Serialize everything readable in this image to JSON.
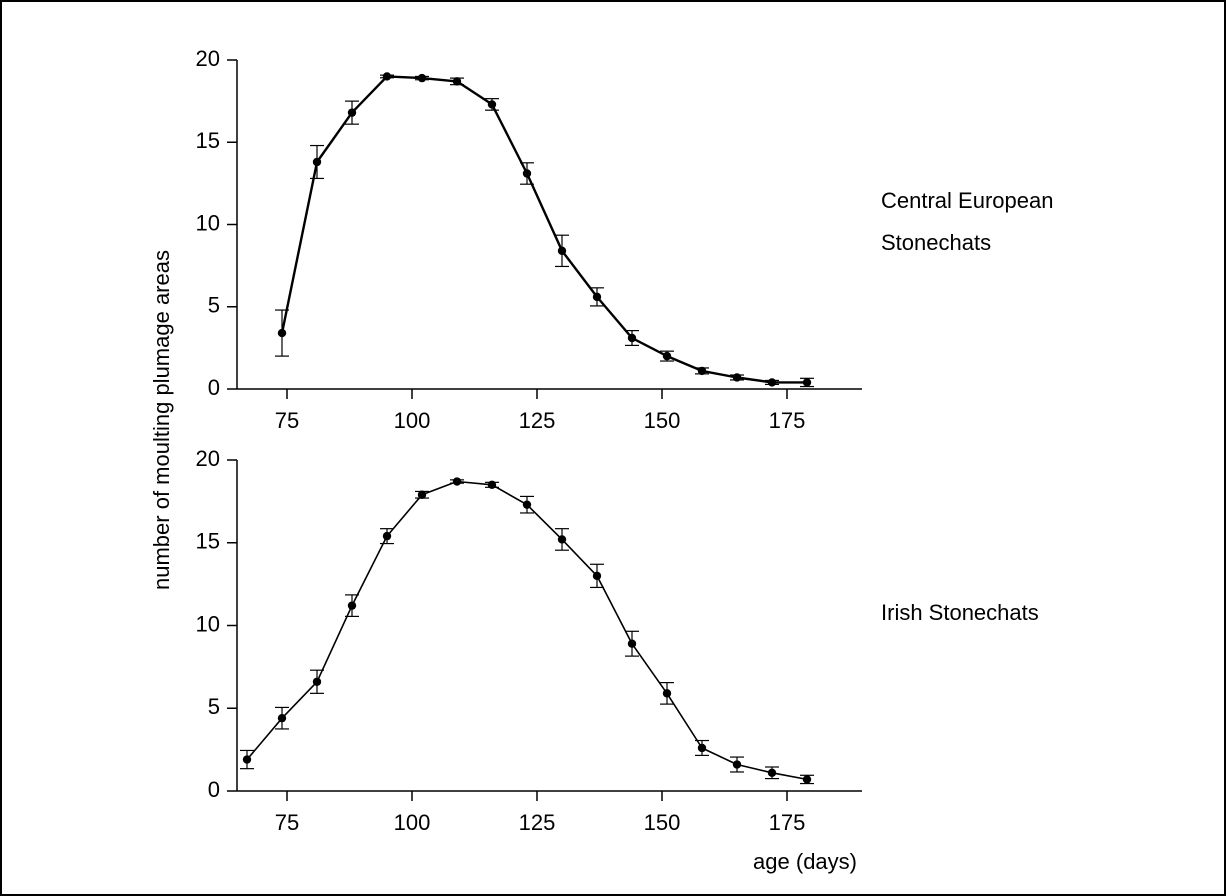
{
  "chart_data": [
    {
      "type": "line",
      "panel_label": [
        "Central European",
        "Stonechats"
      ],
      "ylabel": "number of moulting plumage areas",
      "xlabel": "",
      "xlim": [
        65,
        190
      ],
      "ylim": [
        0,
        20
      ],
      "xticks": [
        75,
        100,
        125,
        150,
        175
      ],
      "yticks": [
        0,
        5,
        10,
        15,
        20
      ],
      "grid": false,
      "series": [
        {
          "x": [
            74,
            81,
            88,
            95,
            102,
            109,
            116,
            123,
            130,
            137,
            144,
            151,
            158,
            165,
            172,
            179
          ],
          "y": [
            3.4,
            13.8,
            16.8,
            19.0,
            18.9,
            18.7,
            17.3,
            13.1,
            8.4,
            5.6,
            3.1,
            2.0,
            1.1,
            0.7,
            0.4,
            0.4
          ],
          "err": [
            1.4,
            1.0,
            0.7,
            0.08,
            0.1,
            0.2,
            0.35,
            0.65,
            0.95,
            0.55,
            0.45,
            0.3,
            0.18,
            0.15,
            0.12,
            0.25
          ]
        }
      ]
    },
    {
      "type": "line",
      "panel_label": [
        "Irish Stonechats"
      ],
      "ylabel": "number of moulting plumage areas",
      "xlabel": "age (days)",
      "xlim": [
        65,
        190
      ],
      "ylim": [
        0,
        20
      ],
      "xticks": [
        75,
        100,
        125,
        150,
        175
      ],
      "yticks": [
        0,
        5,
        10,
        15,
        20
      ],
      "grid": false,
      "series": [
        {
          "x": [
            67,
            74,
            81,
            88,
            95,
            102,
            109,
            116,
            123,
            130,
            137,
            144,
            151,
            158,
            165,
            172,
            179
          ],
          "y": [
            1.9,
            4.4,
            6.6,
            11.2,
            15.4,
            17.9,
            18.7,
            18.5,
            17.3,
            15.2,
            13.0,
            8.9,
            5.9,
            2.6,
            1.6,
            1.1,
            0.7
          ],
          "err": [
            0.55,
            0.65,
            0.7,
            0.65,
            0.45,
            0.2,
            0.1,
            0.15,
            0.5,
            0.65,
            0.7,
            0.75,
            0.65,
            0.45,
            0.45,
            0.35,
            0.25
          ]
        }
      ]
    }
  ]
}
